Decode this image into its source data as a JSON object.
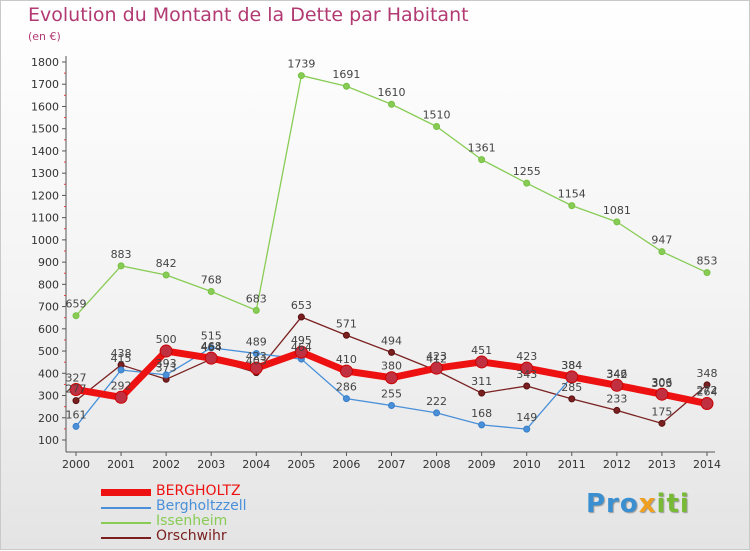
{
  "title": "Evolution du Montant de la Dette par Habitant",
  "unit_label": "(en €)",
  "logo": {
    "part1": "Pro",
    "part2": "x",
    "part3": "iti"
  },
  "colors": {
    "title": "#b23a73",
    "axis": "#555555",
    "grid_ticks": "#e04040"
  },
  "chart_data": {
    "type": "line",
    "title": "Evolution du Montant de la Dette par Habitant",
    "ylabel": "(en €)",
    "xlabel": "",
    "x": [
      "2000",
      "2001",
      "2002",
      "2003",
      "2004",
      "2005",
      "2006",
      "2007",
      "2008",
      "2009",
      "2010",
      "2011",
      "2012",
      "2013",
      "2014"
    ],
    "ylim": [
      100,
      1800
    ],
    "yticks": [
      100,
      200,
      300,
      400,
      500,
      600,
      700,
      800,
      900,
      1000,
      1100,
      1200,
      1300,
      1400,
      1500,
      1600,
      1700,
      1800
    ],
    "grid": false,
    "legend_position": "bottom-left",
    "series": [
      {
        "name": "BERGHOLTZ",
        "color": "#ee1111",
        "values": [
          327,
          292,
          500,
          468,
          423,
          495,
          410,
          380,
          423,
          451,
          423,
          384,
          346,
          306,
          264
        ]
      },
      {
        "name": "Bergholtzzell",
        "color": "#4a90d9",
        "values": [
          161,
          415,
          393,
          515,
          489,
          464,
          286,
          255,
          222,
          168,
          149,
          384,
          342,
          303,
          272
        ]
      },
      {
        "name": "Issenheim",
        "color": "#88cc55",
        "values": [
          659,
          883,
          842,
          768,
          683,
          1739,
          1691,
          1610,
          1510,
          1361,
          1255,
          1154,
          1081,
          947,
          853
        ]
      },
      {
        "name": "Orschwihr",
        "color": "#7a2020",
        "values": [
          277,
          438,
          373,
          464,
          403,
          653,
          571,
          494,
          412,
          311,
          343,
          285,
          233,
          175,
          348
        ]
      }
    ]
  }
}
